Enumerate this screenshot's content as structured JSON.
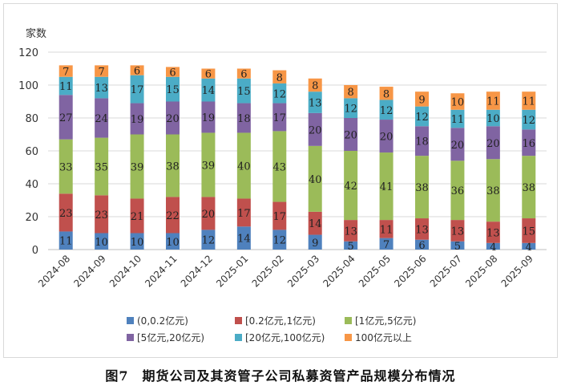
{
  "chart_data": {
    "type": "bar",
    "stacked": true,
    "ylabel": "家数",
    "ylim": [
      0,
      120
    ],
    "yticks": [
      0,
      20,
      40,
      60,
      80,
      100,
      120
    ],
    "grid": true,
    "legend_position": "bottom",
    "categories": [
      "2024-08",
      "2024-09",
      "2024-10",
      "2024-11",
      "2024-12",
      "2025-01",
      "2025-02",
      "2025-03",
      "2025-04",
      "2025-05",
      "2025-06",
      "2025-07",
      "2025-08",
      "2025-09"
    ],
    "series": [
      {
        "name": "(0,0.2亿元)",
        "color": "#4f81bd",
        "values": [
          11,
          10,
          10,
          10,
          12,
          14,
          12,
          9,
          5,
          7,
          6,
          5,
          4,
          4
        ]
      },
      {
        "name": "[0.2亿元,1亿元)",
        "color": "#c0504d",
        "values": [
          23,
          23,
          21,
          22,
          20,
          17,
          17,
          14,
          13,
          11,
          13,
          13,
          13,
          15
        ]
      },
      {
        "name": "[1亿元,5亿元)",
        "color": "#9bbb59",
        "values": [
          33,
          35,
          39,
          38,
          39,
          40,
          43,
          40,
          42,
          41,
          38,
          36,
          38,
          38
        ]
      },
      {
        "name": "[5亿元,20亿元)",
        "color": "#8064a2",
        "values": [
          27,
          24,
          19,
          20,
          19,
          18,
          17,
          20,
          20,
          20,
          18,
          20,
          20,
          16
        ]
      },
      {
        "name": "[20亿元,100亿元)",
        "color": "#4bacc6",
        "values": [
          11,
          13,
          17,
          15,
          14,
          15,
          12,
          13,
          12,
          12,
          12,
          11,
          10,
          12
        ]
      },
      {
        "name": "100亿元以上",
        "color": "#f79646",
        "values": [
          7,
          7,
          6,
          6,
          6,
          6,
          8,
          8,
          8,
          8,
          9,
          10,
          11,
          11
        ]
      }
    ]
  },
  "caption": "图7　期货公司及其资管子公司私募资管产品规模分布情况"
}
